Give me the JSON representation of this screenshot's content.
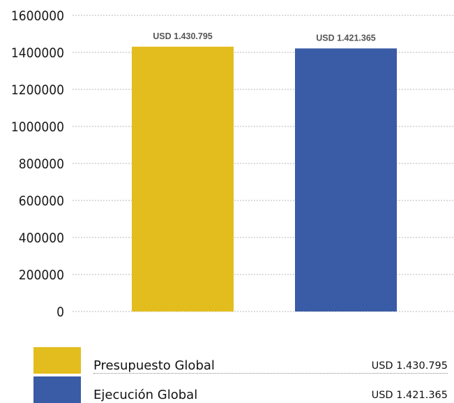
{
  "chart_data": {
    "type": "bar",
    "categories": [
      "Presupuesto Global",
      "Ejecución Global"
    ],
    "values": [
      1430795,
      1421365
    ],
    "data_labels": [
      "USD 1.430.795",
      "USD 1.421.365"
    ],
    "colors": [
      "#E3BD1E",
      "#3A5BA5"
    ],
    "ylim": [
      0,
      1600000
    ],
    "yticks": [
      0,
      200000,
      400000,
      600000,
      800000,
      1000000,
      1200000,
      1400000,
      1600000
    ],
    "grid": true,
    "legend_placement": "bottom"
  },
  "legend": [
    {
      "label": "Presupuesto Global",
      "value": "USD 1.430.795",
      "color": "#E3BD1E"
    },
    {
      "label": "Ejecución Global",
      "value": "USD 1.421.365",
      "color": "#3A5BA5"
    }
  ]
}
